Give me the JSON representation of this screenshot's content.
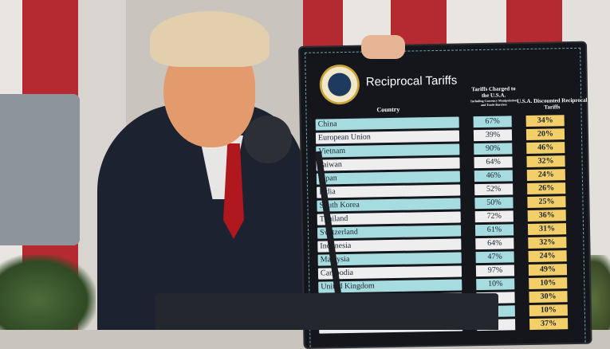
{
  "board": {
    "title": "Reciprocal Tariffs",
    "seal_icon": "presidential-seal-icon",
    "headers": {
      "country": "Country",
      "charged": "Tariffs Charged to the U.S.A.",
      "charged_sub": "Including Currency Manipulation and Trade Barriers",
      "reciprocal": "U.S.A. Discounted Reciprocal Tariffs"
    },
    "rows": [
      {
        "country": "China",
        "charged": "67%",
        "reciprocal": "34%"
      },
      {
        "country": "European Union",
        "charged": "39%",
        "reciprocal": "20%"
      },
      {
        "country": "Vietnam",
        "charged": "90%",
        "reciprocal": "46%"
      },
      {
        "country": "Taiwan",
        "charged": "64%",
        "reciprocal": "32%"
      },
      {
        "country": "Japan",
        "charged": "46%",
        "reciprocal": "24%"
      },
      {
        "country": "India",
        "charged": "52%",
        "reciprocal": "26%"
      },
      {
        "country": "South Korea",
        "charged": "50%",
        "reciprocal": "25%"
      },
      {
        "country": "Thailand",
        "charged": "72%",
        "reciprocal": "36%"
      },
      {
        "country": "Switzerland",
        "charged": "61%",
        "reciprocal": "31%"
      },
      {
        "country": "Indonesia",
        "charged": "64%",
        "reciprocal": "32%"
      },
      {
        "country": "Malaysia",
        "charged": "47%",
        "reciprocal": "24%"
      },
      {
        "country": "Cambodia",
        "charged": "97%",
        "reciprocal": "49%"
      },
      {
        "country": "United Kingdom",
        "charged": "10%",
        "reciprocal": "10%"
      },
      {
        "country": "",
        "charged": "",
        "reciprocal": "30%"
      },
      {
        "country": "",
        "charged": "",
        "reciprocal": "10%"
      },
      {
        "country": "",
        "charged": "",
        "reciprocal": "37%"
      }
    ],
    "colors": {
      "teal": "#a6dce0",
      "white": "#eeeeee",
      "gold": "#f3cf6a",
      "board": "#14161b"
    }
  }
}
